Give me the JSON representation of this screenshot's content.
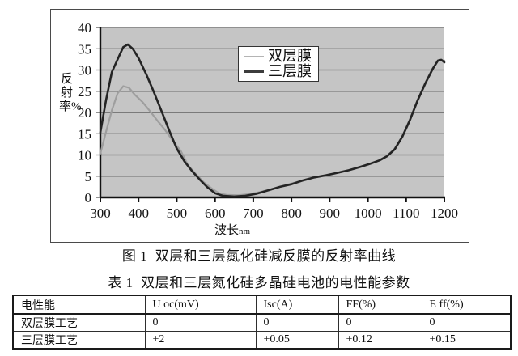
{
  "captions": {
    "figure": "图 1  双层和三层氮化硅减反膜的反射率曲线",
    "table": "表 1  双层和三层氮化硅多晶硅电池的电性能参数"
  },
  "chart_data": {
    "type": "line",
    "title": "",
    "xlabel": "波长",
    "xlabel_unit": "nm",
    "ylabel": "反射率%",
    "xlim": [
      300,
      1200
    ],
    "ylim": [
      0,
      40
    ],
    "x_ticks": [
      300,
      400,
      500,
      600,
      700,
      800,
      900,
      1000,
      1100,
      1200
    ],
    "y_ticks": [
      0,
      5,
      10,
      15,
      20,
      25,
      30,
      35,
      40
    ],
    "grid": "horizontal",
    "plot_bg": "#c5c5c5",
    "gridline_color": "#4d4d4d",
    "axis_color": "#111111",
    "legend_position": "top-center-inside",
    "series": [
      {
        "name": "双层膜",
        "color": "#9e9e9e",
        "width": 2.2,
        "x": [
          300,
          315,
          330,
          345,
          360,
          375,
          390,
          410,
          430,
          450,
          470,
          490,
          510,
          530,
          550,
          570,
          590,
          610,
          630,
          660,
          690,
          720,
          750,
          780,
          810,
          840,
          870,
          900,
          930,
          960,
          990,
          1010,
          1030,
          1050,
          1070,
          1090,
          1110,
          1130,
          1150,
          1170,
          1185,
          1200
        ],
        "y": [
          10.3,
          15.5,
          20.5,
          24.5,
          26.2,
          25.8,
          24.2,
          22.5,
          20.3,
          18,
          15.8,
          13.3,
          11,
          7.5,
          5.5,
          3.6,
          2.2,
          1.0,
          0.6,
          0.5,
          0.8,
          1.3,
          2.0,
          2.8,
          3.5,
          4.3,
          4.9,
          5.4,
          6.0,
          6.6,
          7.4,
          8.0,
          8.8,
          9.8,
          11.5,
          14.5,
          18.5,
          23,
          27,
          30.5,
          32.3,
          32.2
        ]
      },
      {
        "name": "三层膜",
        "color": "#242424",
        "width": 2.6,
        "x": [
          300,
          315,
          330,
          345,
          360,
          372,
          385,
          400,
          420,
          440,
          460,
          480,
          500,
          520,
          540,
          560,
          580,
          600,
          620,
          650,
          680,
          710,
          740,
          770,
          800,
          830,
          860,
          890,
          920,
          950,
          980,
          1005,
          1030,
          1050,
          1070,
          1090,
          1110,
          1130,
          1150,
          1170,
          1183,
          1192,
          1200
        ],
        "y": [
          15.3,
          23,
          29.5,
          32.5,
          35.4,
          36,
          35,
          32.8,
          29,
          24.8,
          20.3,
          15.8,
          11.5,
          8.5,
          6.2,
          4.2,
          2.4,
          1.0,
          0.4,
          0.2,
          0.4,
          0.9,
          1.7,
          2.5,
          3.1,
          4.0,
          4.7,
          5.2,
          5.8,
          6.4,
          7.2,
          7.9,
          8.7,
          9.7,
          11.3,
          14.3,
          18.2,
          22.8,
          26.8,
          30.3,
          32.2,
          32.4,
          31.8
        ]
      }
    ]
  },
  "table": {
    "header": [
      "电性能",
      "U oc(mV)",
      "Isc(A)",
      "FF(%)",
      "E ff(%)"
    ],
    "rows": [
      {
        "cells": [
          "双层膜工艺",
          "0",
          "0",
          "0",
          "0"
        ]
      },
      {
        "cells": [
          "三层膜工艺",
          "+2",
          "+0.05",
          "+0.12",
          "+0.15"
        ]
      }
    ]
  }
}
